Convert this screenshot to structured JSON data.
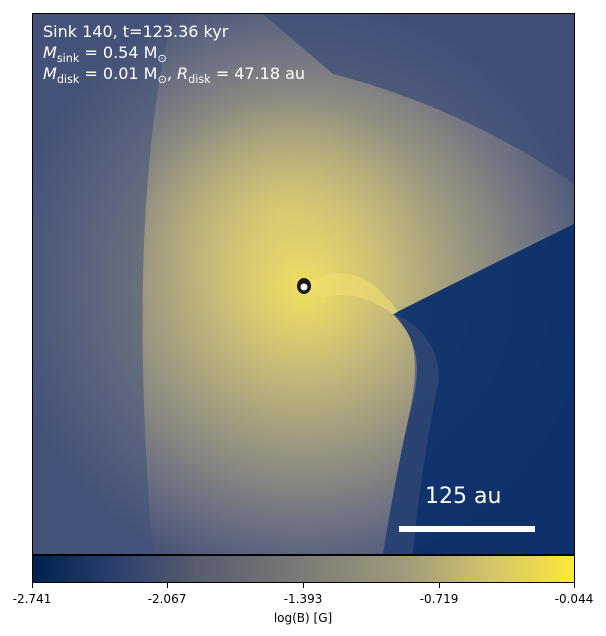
{
  "annotation": {
    "line1": "Sink 140, t=123.36 kyr",
    "line2_symbol": "M",
    "line2_sub": "sink",
    "line2_rest": " = 0.54 M",
    "line2_sun": "⊙",
    "line3_symbol": "M",
    "line3_sub": "disk",
    "line3_mid": " = 0.01 M",
    "line3_sun": "⊙",
    "line3_sep": ", ",
    "line3_r": "R",
    "line3_rsub": "disk",
    "line3_rest": " = 47.18 au"
  },
  "scalebar": {
    "label": "125 au"
  },
  "colorbar": {
    "label": "log(B) [G]",
    "ticks": [
      "-2.741",
      "-2.067",
      "-1.393",
      "-0.719",
      "-0.044"
    ],
    "colors": [
      "#00224e",
      "#7c7b78",
      "#fee838"
    ]
  }
}
